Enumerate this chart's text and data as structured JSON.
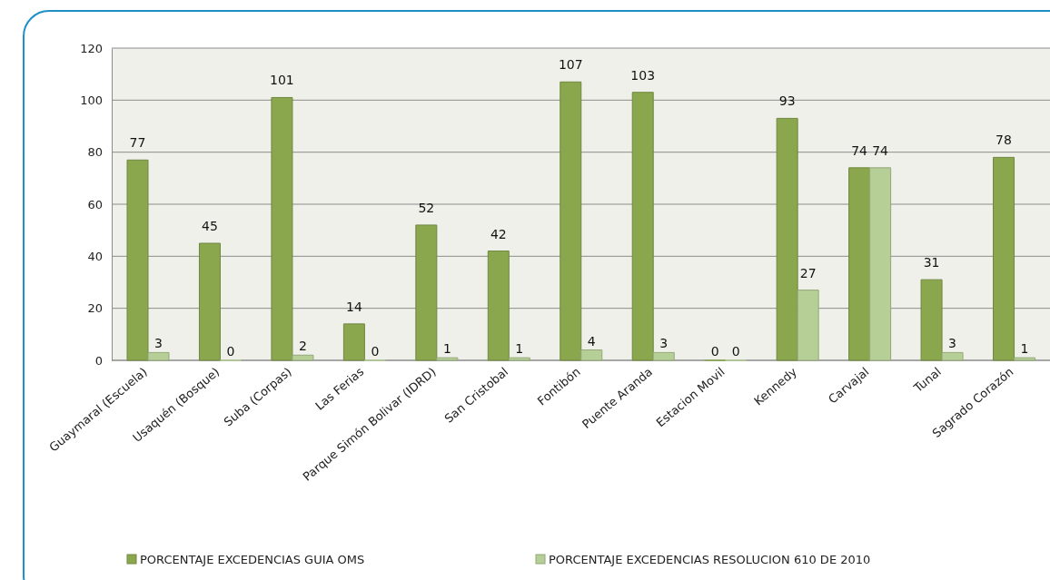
{
  "chart_data": {
    "type": "bar",
    "categories": [
      "Guaymaral (Escuela)",
      "Usaquén (Bosque)",
      "Suba (Corpas)",
      "Las Ferias",
      "Parque Simón Bolivar (IDRD)",
      "San Cristobal",
      "Fontibón",
      "Puente Aranda",
      "Estacion Movil",
      "Kennedy",
      "Carvajal",
      "Tunal",
      "Sagrado Corazón"
    ],
    "series": [
      {
        "name": "PORCENTAJE EXCEDENCIAS GUIA OMS",
        "color": "#8aa74e",
        "values": [
          77,
          45,
          101,
          14,
          52,
          42,
          107,
          103,
          0,
          93,
          74,
          31,
          78
        ]
      },
      {
        "name": "PORCENTAJE EXCEDENCIAS RESOLUCION 610 DE 2010",
        "color": "#b6cf96",
        "values": [
          3,
          0,
          2,
          0,
          1,
          1,
          4,
          3,
          0,
          27,
          74,
          3,
          1
        ]
      }
    ],
    "ylim": [
      0,
      120
    ],
    "yticks": [
      0,
      20,
      40,
      60,
      80,
      100,
      120
    ],
    "grid": "y",
    "legend": "bottom",
    "data_labels": true
  }
}
